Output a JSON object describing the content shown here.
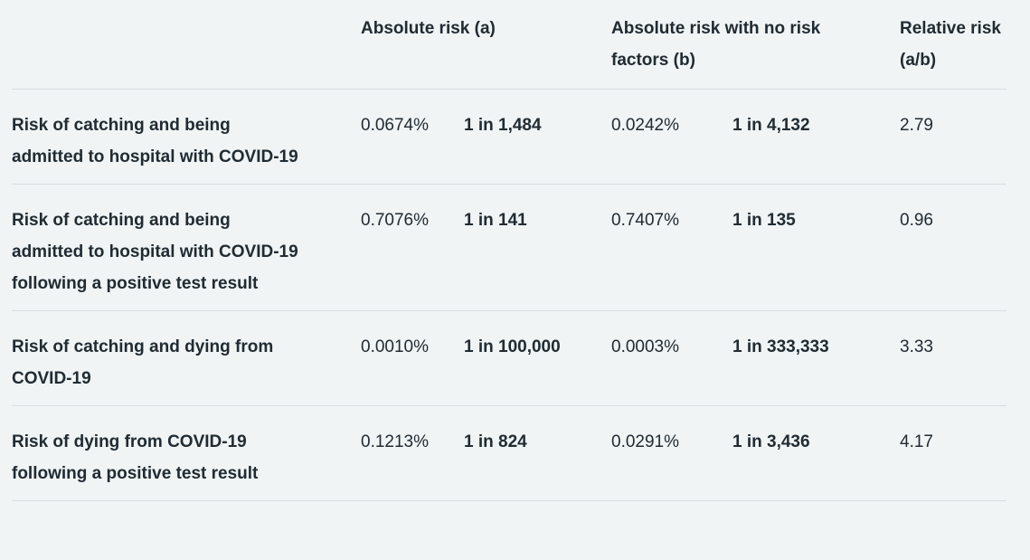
{
  "colors": {
    "background": "#f0f4f5",
    "text": "#212b32",
    "divider": "#d8dde0"
  },
  "table": {
    "headers": {
      "row_label": "",
      "absolute_risk": "Absolute risk (a)",
      "absolute_risk_no_factors": "Absolute risk with no risk factors (b)",
      "relative_risk": "Relative risk (a/b)"
    },
    "rows": [
      {
        "label": "Risk of catching and being admitted to hospital with COVID-19",
        "absolute_risk_pct": "0.0674%",
        "absolute_risk_ratio": "1 in 1,484",
        "no_factors_pct": "0.0242%",
        "no_factors_ratio": "1 in 4,132",
        "relative_risk": "2.79"
      },
      {
        "label": "Risk of catching and being admitted to hospital with COVID-19 following a positive test result",
        "absolute_risk_pct": "0.7076%",
        "absolute_risk_ratio": "1 in 141",
        "no_factors_pct": "0.7407%",
        "no_factors_ratio": "1 in 135",
        "relative_risk": "0.96"
      },
      {
        "label": "Risk of catching and dying from COVID-19",
        "absolute_risk_pct": "0.0010%",
        "absolute_risk_ratio": "1 in 100,000",
        "no_factors_pct": "0.0003%",
        "no_factors_ratio": "1 in 333,333",
        "relative_risk": "3.33"
      },
      {
        "label": "Risk of dying from COVID-19 following a positive test result",
        "absolute_risk_pct": "0.1213%",
        "absolute_risk_ratio": "1 in 824",
        "no_factors_pct": "0.0291%",
        "no_factors_ratio": "1 in 3,436",
        "relative_risk": "4.17"
      }
    ]
  }
}
